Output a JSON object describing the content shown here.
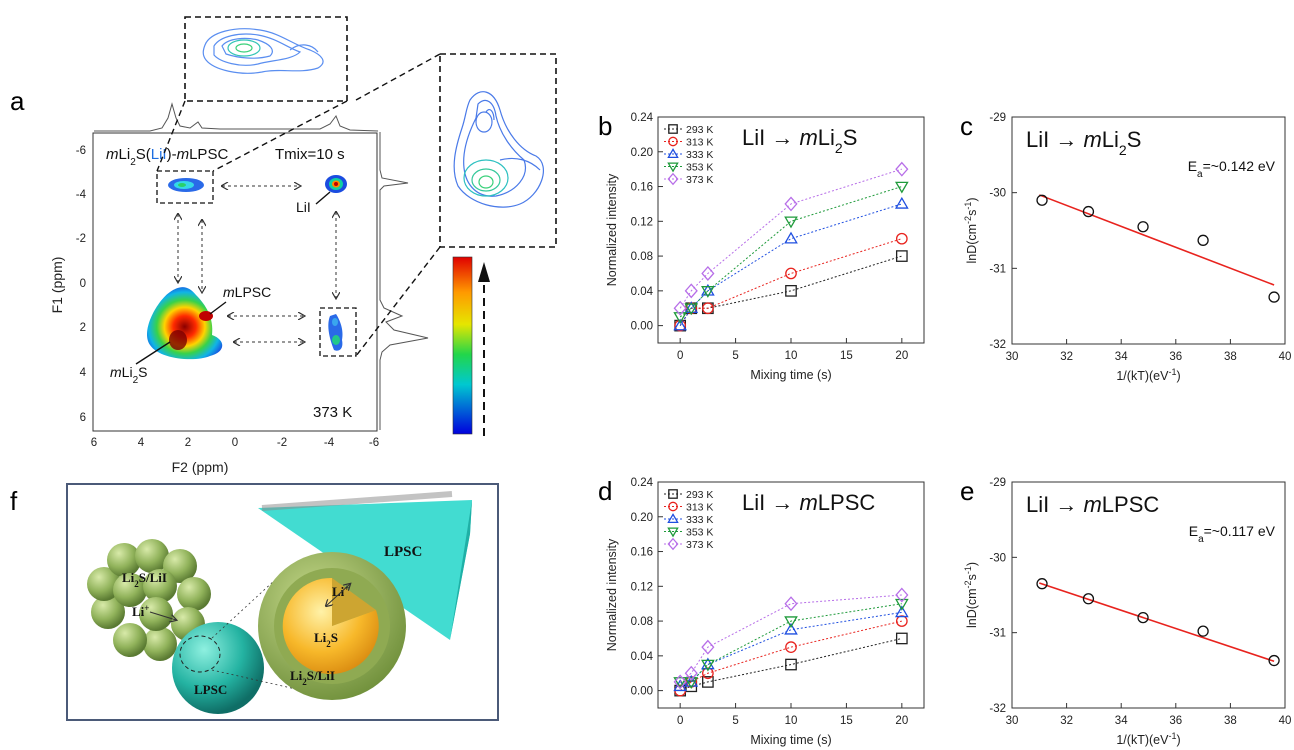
{
  "panel_labels": {
    "a": "a",
    "b": "b",
    "c": "c",
    "d": "d",
    "e": "e",
    "f": "f"
  },
  "panel_a": {
    "title_parts": [
      "m",
      "Li",
      "2",
      "S(",
      "LiI",
      ")-",
      "m",
      "LPSC"
    ],
    "tmix": "Tmix=10 s",
    "temperature": "373 K",
    "label_lii": "LiI",
    "label_mlpsc": [
      "m",
      "LPSC"
    ],
    "label_mli2s": [
      "m",
      "Li",
      "2",
      "S"
    ],
    "ylabel": "F1 (ppm)",
    "xlabel": "F2 (ppm)",
    "x_ticks": [
      "6",
      "4",
      "2",
      "0",
      "-2",
      "-4",
      "-6"
    ],
    "y_ticks": [
      "-6",
      "-4",
      "-2",
      "0",
      "2",
      "4",
      "6"
    ],
    "lii_color": "#1e6fe0"
  },
  "panel_f": {
    "li2s_lii": [
      "Li",
      "2",
      "S/LiI"
    ],
    "li_plus": [
      "Li",
      "+"
    ],
    "lpsc": "LPSC",
    "lpsc_right": "LPSC",
    "core": [
      "Li",
      "2",
      "S"
    ],
    "shell": [
      "Li",
      "2",
      "S/LiI"
    ],
    "li_plus_core": [
      "Li",
      "+"
    ]
  },
  "chart_data": [
    {
      "id": "b",
      "type": "scatter",
      "title_parts": [
        "LiI → ",
        "m",
        "Li",
        "2",
        "S"
      ],
      "xlabel": "Mixing time (s)",
      "ylabel": "Normalized intensity",
      "xlim": [
        -2,
        22
      ],
      "ylim": [
        -0.02,
        0.24
      ],
      "x_ticks": [
        0,
        5,
        10,
        15,
        20
      ],
      "y_ticks": [
        "0.00",
        "0.04",
        "0.08",
        "0.12",
        "0.16",
        "0.20",
        "0.24"
      ],
      "legend_placement": "top-left",
      "x": [
        0,
        1,
        2.5,
        10,
        20
      ],
      "series": [
        {
          "name": "293 K",
          "marker": "square",
          "color": "#222222",
          "values": [
            0.0,
            0.02,
            0.02,
            0.04,
            0.08
          ]
        },
        {
          "name": "313 K",
          "marker": "circle",
          "color": "#e8231e",
          "values": [
            0.0,
            0.02,
            0.02,
            0.06,
            0.1
          ]
        },
        {
          "name": "333 K",
          "marker": "triangle-up",
          "color": "#1f4fe0",
          "values": [
            0.0,
            0.02,
            0.04,
            0.1,
            0.14
          ]
        },
        {
          "name": "353 K",
          "marker": "triangle-down",
          "color": "#1e9a3a",
          "values": [
            0.01,
            0.02,
            0.04,
            0.12,
            0.16
          ]
        },
        {
          "name": "373 K",
          "marker": "diamond",
          "color": "#b76ee8",
          "values": [
            0.02,
            0.04,
            0.06,
            0.14,
            0.18
          ]
        }
      ]
    },
    {
      "id": "c",
      "type": "scatter",
      "title_parts": [
        "LiI → ",
        "m",
        "Li",
        "2",
        "S"
      ],
      "annotation_parts": [
        "E",
        "a",
        "=~0.142 eV"
      ],
      "xlabel_parts": [
        "1/(kT)(eV",
        "-1",
        ")"
      ],
      "ylabel_parts": [
        "lnD(cm",
        "-2",
        "s",
        "-1",
        ")"
      ],
      "xlim": [
        30,
        40
      ],
      "ylim": [
        -32,
        -29
      ],
      "x_ticks": [
        30,
        32,
        34,
        36,
        38,
        40
      ],
      "y_ticks": [
        -32,
        -31,
        -30,
        -29
      ],
      "x": [
        31.1,
        32.8,
        34.8,
        37.0,
        39.6
      ],
      "y": [
        -30.1,
        -30.25,
        -30.45,
        -30.63,
        -31.38
      ],
      "fit": {
        "x": [
          31.0,
          39.6
        ],
        "y": [
          -30.03,
          -31.22
        ],
        "color": "#e8231e"
      }
    },
    {
      "id": "d",
      "type": "scatter",
      "title_parts": [
        "LiI → ",
        "m",
        "LPSC"
      ],
      "xlabel": "Mixing time (s)",
      "ylabel": "Normalized intensity",
      "xlim": [
        -2,
        22
      ],
      "ylim": [
        -0.02,
        0.24
      ],
      "x_ticks": [
        0,
        5,
        10,
        15,
        20
      ],
      "y_ticks": [
        "0.00",
        "0.04",
        "0.08",
        "0.12",
        "0.16",
        "0.20",
        "0.24"
      ],
      "legend_placement": "top-left",
      "x": [
        0,
        1,
        2.5,
        10,
        20
      ],
      "series": [
        {
          "name": "293 K",
          "marker": "square",
          "color": "#222222",
          "values": [
            0.0,
            0.005,
            0.01,
            0.03,
            0.06
          ]
        },
        {
          "name": "313 K",
          "marker": "circle",
          "color": "#e8231e",
          "values": [
            0.0,
            0.01,
            0.02,
            0.05,
            0.08
          ]
        },
        {
          "name": "333 K",
          "marker": "triangle-up",
          "color": "#1f4fe0",
          "values": [
            0.005,
            0.01,
            0.03,
            0.07,
            0.09
          ]
        },
        {
          "name": "353 K",
          "marker": "triangle-down",
          "color": "#1e9a3a",
          "values": [
            0.01,
            0.01,
            0.03,
            0.08,
            0.1
          ]
        },
        {
          "name": "373 K",
          "marker": "diamond",
          "color": "#b76ee8",
          "values": [
            0.01,
            0.02,
            0.05,
            0.1,
            0.11
          ]
        }
      ]
    },
    {
      "id": "e",
      "type": "scatter",
      "title_parts": [
        "LiI → ",
        "m",
        "LPSC"
      ],
      "annotation_parts": [
        "E",
        "a",
        "=~0.117 eV"
      ],
      "xlabel_parts": [
        "1/(kT)(eV",
        "-1",
        ")"
      ],
      "ylabel_parts": [
        "lnD(cm",
        "-2",
        "s",
        "-1",
        ")"
      ],
      "xlim": [
        30,
        40
      ],
      "ylim": [
        -32,
        -29
      ],
      "x_ticks": [
        30,
        32,
        34,
        36,
        38,
        40
      ],
      "y_ticks": [
        -32,
        -31,
        -30,
        -29
      ],
      "x": [
        31.1,
        32.8,
        34.8,
        37.0,
        39.6
      ],
      "y": [
        -30.35,
        -30.55,
        -30.8,
        -30.98,
        -31.37
      ],
      "fit": {
        "x": [
          31.0,
          39.6
        ],
        "y": [
          -30.34,
          -31.38
        ],
        "color": "#e8231e"
      }
    }
  ]
}
